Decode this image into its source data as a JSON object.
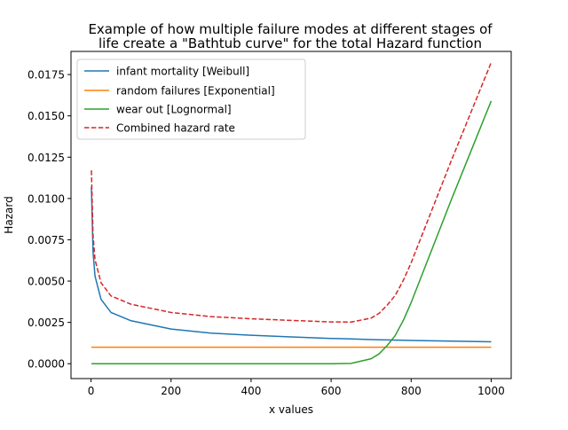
{
  "chart_data": {
    "type": "line",
    "title_lines": [
      "Example of how multiple failure modes at different stages of",
      "life create a \"Bathtub curve\" for the total Hazard function"
    ],
    "xlabel": "x values",
    "ylabel": "Hazard",
    "xlim": [
      -50,
      1050
    ],
    "ylim": [
      -0.0009,
      0.0189
    ],
    "x_ticks": [
      0,
      200,
      400,
      600,
      800,
      1000
    ],
    "x_tick_labels": [
      "0",
      "200",
      "400",
      "600",
      "800",
      "1000"
    ],
    "y_ticks": [
      0.0,
      0.0025,
      0.005,
      0.0075,
      0.01,
      0.0125,
      0.015,
      0.0175
    ],
    "y_tick_labels": [
      "0.0000",
      "0.0025",
      "0.0050",
      "0.0075",
      "0.0100",
      "0.0125",
      "0.0150",
      "0.0175"
    ],
    "grid": false,
    "legend_position": "upper-left",
    "x": [
      1,
      5,
      10,
      25,
      50,
      100,
      200,
      300,
      400,
      500,
      600,
      650,
      700,
      720,
      740,
      760,
      780,
      800,
      850,
      900,
      950,
      1000
    ],
    "series": [
      {
        "name": "infant mortality [Weibull]",
        "color": "#1f77b4",
        "style": "solid",
        "values": [
          0.0107,
          0.0068,
          0.0053,
          0.0039,
          0.0031,
          0.0026,
          0.0021,
          0.00185,
          0.00172,
          0.00162,
          0.00153,
          0.0015,
          0.00146,
          0.00145,
          0.00144,
          0.00143,
          0.00142,
          0.00141,
          0.00139,
          0.00137,
          0.00135,
          0.00133
        ]
      },
      {
        "name": "random failures [Exponential]",
        "color": "#ff7f0e",
        "style": "solid",
        "values": [
          0.001,
          0.001,
          0.001,
          0.001,
          0.001,
          0.001,
          0.001,
          0.001,
          0.001,
          0.001,
          0.001,
          0.001,
          0.001,
          0.001,
          0.001,
          0.001,
          0.001,
          0.001,
          0.001,
          0.001,
          0.001,
          0.001
        ]
      },
      {
        "name": "wear out [Lognormal]",
        "color": "#2ca02c",
        "style": "solid",
        "values": [
          0,
          0,
          0,
          0,
          0,
          0,
          0,
          0,
          0,
          0,
          0,
          2e-05,
          0.0003,
          0.0006,
          0.0011,
          0.0017,
          0.0026,
          0.0037,
          0.0068,
          0.0099,
          0.0129,
          0.0159
        ]
      },
      {
        "name": "Combined hazard rate",
        "color": "#d62728",
        "style": "dashed",
        "values": [
          0.0117,
          0.0078,
          0.0063,
          0.0049,
          0.0041,
          0.0036,
          0.0031,
          0.00285,
          0.00272,
          0.00262,
          0.00253,
          0.00252,
          0.00276,
          0.00305,
          0.00354,
          0.00413,
          0.00502,
          0.00611,
          0.00919,
          0.01227,
          0.01525,
          0.01823
        ]
      }
    ]
  }
}
